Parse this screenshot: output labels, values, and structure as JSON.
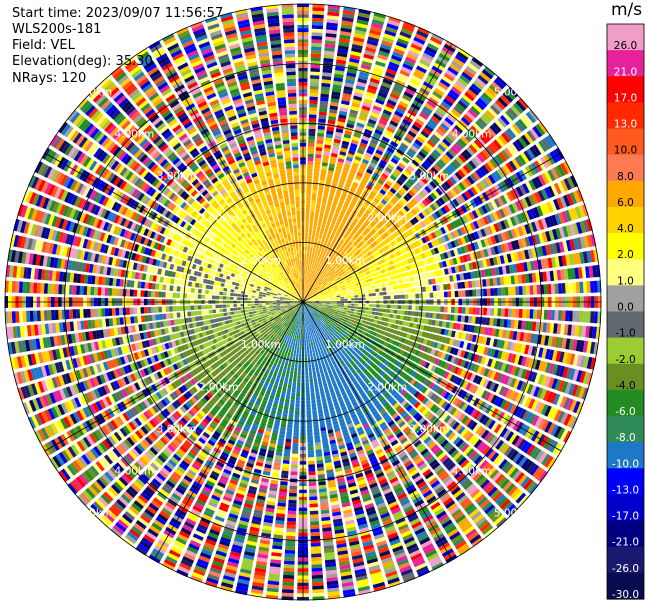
{
  "header": {
    "start_time": "Start time: 2023/09/07 11:56:57",
    "instrument": "WLS200s-181",
    "field": "Field: VEL",
    "elevation": "Elevation(deg): 35.30",
    "nrays": "NRays: 120"
  },
  "chart_data": {
    "type": "heatmap",
    "subtype": "radar-ppi",
    "nrays": 120,
    "range_rings_km": [
      1.0,
      2.0,
      3.0,
      4.0,
      5.0
    ],
    "ring_labels": [
      "1.00km",
      "2.00km",
      "3.00km",
      "4.00km",
      "5.00km"
    ],
    "colorbar": {
      "title": "m/s",
      "ticks": [
        "26.0",
        "21.0",
        "17.0",
        "13.0",
        "10.0",
        "8.0",
        "6.0",
        "4.0",
        "2.0",
        "1.0",
        "0.0",
        "-1.0",
        "-2.0",
        "-4.0",
        "-6.0",
        "-8.0",
        "-10.0",
        "-13.0",
        "-17.0",
        "-21.0",
        "-26.0",
        "-30.0"
      ],
      "colors": [
        "#f09ec8",
        "#e8209a",
        "#ff0000",
        "#ff2a00",
        "#ff5a1e",
        "#ff7a50",
        "#ffa800",
        "#ffd200",
        "#ffff00",
        "#ffff80",
        "#a0a0a0",
        "#606870",
        "#9acd32",
        "#6b8e23",
        "#228b22",
        "#2e8b57",
        "#1e78c8",
        "#0000ff",
        "#0000cd",
        "#000080",
        "#191970",
        "#0a0a50"
      ]
    }
  }
}
